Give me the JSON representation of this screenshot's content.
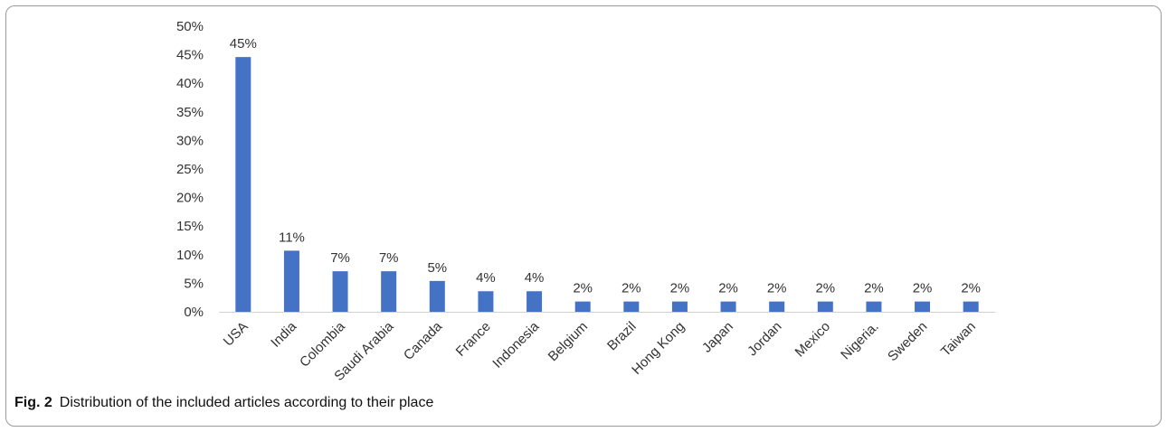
{
  "figure": {
    "label": "Fig. 2",
    "caption": "Distribution of the included articles according to their place"
  },
  "chart_data": {
    "type": "bar",
    "categories": [
      "USA",
      "India",
      "Colombia",
      "Saudi Arabia",
      "Canada",
      "France",
      "Indonesia",
      "Belgium",
      "Brazil",
      "Hong Kong",
      "Japan",
      "Jordan",
      "Mexico",
      "Nigeria.",
      "Sweden",
      "Taiwan"
    ],
    "values": [
      44.6,
      10.7,
      7.1,
      7.1,
      5.4,
      3.6,
      3.6,
      1.8,
      1.8,
      1.8,
      1.8,
      1.8,
      1.8,
      1.8,
      1.8,
      1.8
    ],
    "data_labels": [
      "45%",
      "11%",
      "7%",
      "7%",
      "5%",
      "4%",
      "4%",
      "2%",
      "2%",
      "2%",
      "2%",
      "2%",
      "2%",
      "2%",
      "2%",
      "2%"
    ],
    "yticks": [
      "0%",
      "5%",
      "10%",
      "15%",
      "20%",
      "25%",
      "30%",
      "35%",
      "40%",
      "45%",
      "50%"
    ],
    "ylim": [
      0,
      50
    ],
    "bar_color": "#4472c4",
    "grid": false,
    "legend": "none",
    "xlabel": "",
    "ylabel": ""
  }
}
